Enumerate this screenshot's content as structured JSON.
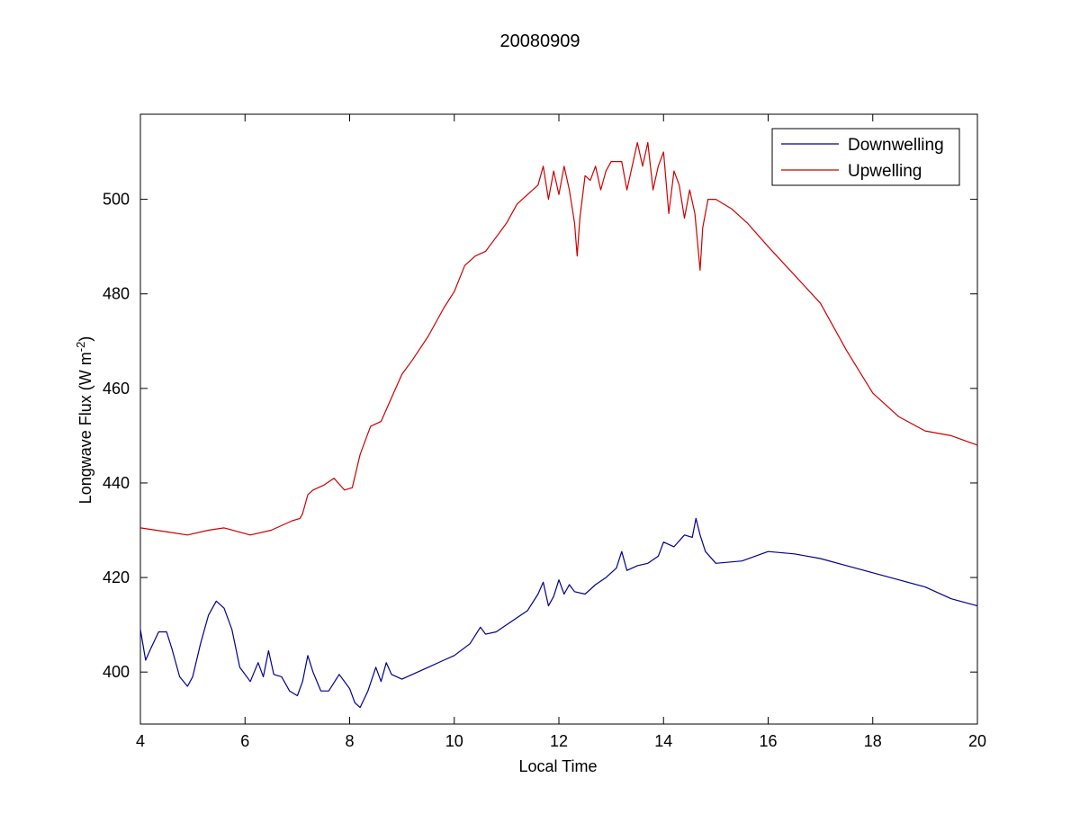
{
  "chart_data": {
    "type": "line",
    "title": "20080909",
    "xlabel": "Local Time",
    "ylabel_main": "Longwave Flux (W m",
    "ylabel_sup": "-2",
    "ylabel_close": ")",
    "xlim": [
      4,
      20
    ],
    "ylim": [
      389,
      518
    ],
    "xticks": [
      4,
      6,
      8,
      10,
      12,
      14,
      16,
      18,
      20
    ],
    "yticks": [
      400,
      420,
      440,
      460,
      480,
      500
    ],
    "grid": false,
    "legend_position": "top-right",
    "series": [
      {
        "name": "Downwelling",
        "color": "#00008B",
        "x": [
          4.0,
          4.1,
          4.2,
          4.35,
          4.5,
          4.6,
          4.75,
          4.9,
          5.0,
          5.15,
          5.3,
          5.45,
          5.6,
          5.75,
          5.9,
          6.1,
          6.25,
          6.35,
          6.45,
          6.55,
          6.7,
          6.85,
          7.0,
          7.1,
          7.2,
          7.3,
          7.45,
          7.6,
          7.8,
          8.0,
          8.1,
          8.2,
          8.35,
          8.5,
          8.6,
          8.7,
          8.8,
          9.0,
          9.2,
          9.5,
          9.8,
          10.0,
          10.3,
          10.5,
          10.6,
          10.8,
          11.0,
          11.2,
          11.4,
          11.6,
          11.7,
          11.8,
          11.9,
          12.0,
          12.1,
          12.2,
          12.3,
          12.5,
          12.7,
          12.9,
          13.1,
          13.2,
          13.3,
          13.5,
          13.7,
          13.9,
          14.0,
          14.2,
          14.4,
          14.55,
          14.62,
          14.7,
          14.8,
          15.0,
          15.5,
          16.0,
          16.5,
          17.0,
          17.5,
          18.0,
          18.5,
          19.0,
          19.5,
          20.0
        ],
        "y": [
          409,
          402.5,
          405,
          408.5,
          408.5,
          405,
          399,
          397,
          399,
          406,
          412,
          415,
          413.5,
          409,
          401,
          398,
          402,
          399,
          404.5,
          399.5,
          399,
          396,
          395,
          398,
          403.5,
          400,
          396,
          396,
          399.5,
          396.5,
          393.5,
          392.5,
          396,
          401,
          398,
          402,
          399.5,
          398.5,
          399.5,
          401,
          402.5,
          403.5,
          406,
          409.5,
          408,
          408.5,
          410,
          411.5,
          413,
          416.5,
          419,
          414,
          416,
          419.5,
          416.5,
          418.5,
          417,
          416.5,
          418.5,
          420,
          422,
          425.5,
          421.5,
          422.5,
          423,
          424.5,
          427.5,
          426.5,
          429,
          428.5,
          432.5,
          429,
          425.5,
          423,
          423.5,
          425.5,
          425,
          424,
          422.5,
          421,
          419.5,
          418,
          415.5,
          414
        ]
      },
      {
        "name": "Upwelling",
        "color": "#CC0000",
        "x": [
          4.0,
          4.3,
          4.6,
          4.9,
          5.3,
          5.6,
          6.1,
          6.5,
          6.9,
          7.05,
          7.1,
          7.2,
          7.3,
          7.5,
          7.7,
          7.9,
          8.05,
          8.2,
          8.3,
          8.4,
          8.6,
          8.8,
          9.0,
          9.2,
          9.5,
          9.8,
          10.0,
          10.2,
          10.4,
          10.6,
          10.8,
          11.0,
          11.2,
          11.4,
          11.6,
          11.7,
          11.8,
          11.9,
          12.0,
          12.1,
          12.2,
          12.3,
          12.35,
          12.4,
          12.5,
          12.6,
          12.7,
          12.8,
          12.9,
          13.0,
          13.2,
          13.3,
          13.5,
          13.6,
          13.7,
          13.8,
          13.9,
          14.0,
          14.1,
          14.2,
          14.3,
          14.4,
          14.5,
          14.6,
          14.7,
          14.75,
          14.85,
          15.0,
          15.3,
          15.6,
          16.0,
          16.5,
          17.0,
          17.5,
          18.0,
          18.5,
          19.0,
          19.5,
          20.0
        ],
        "y": [
          430.5,
          430,
          429.5,
          429,
          430,
          430.5,
          429,
          430,
          432,
          432.5,
          433.5,
          437.5,
          438.5,
          439.5,
          441,
          438.5,
          439,
          446,
          449,
          452,
          453,
          458,
          463,
          466,
          471,
          477,
          480.5,
          486,
          488,
          489,
          492,
          495,
          499,
          501,
          503,
          507,
          500,
          506,
          501,
          507,
          502,
          495,
          488,
          496,
          505,
          504,
          507,
          502,
          506,
          508,
          508,
          502,
          512,
          507,
          512,
          502,
          507,
          510,
          497,
          506,
          503,
          496,
          502,
          497,
          485,
          494,
          500,
          500,
          498,
          495,
          490,
          484,
          478,
          468,
          459,
          454,
          451,
          450,
          448
        ]
      }
    ]
  }
}
